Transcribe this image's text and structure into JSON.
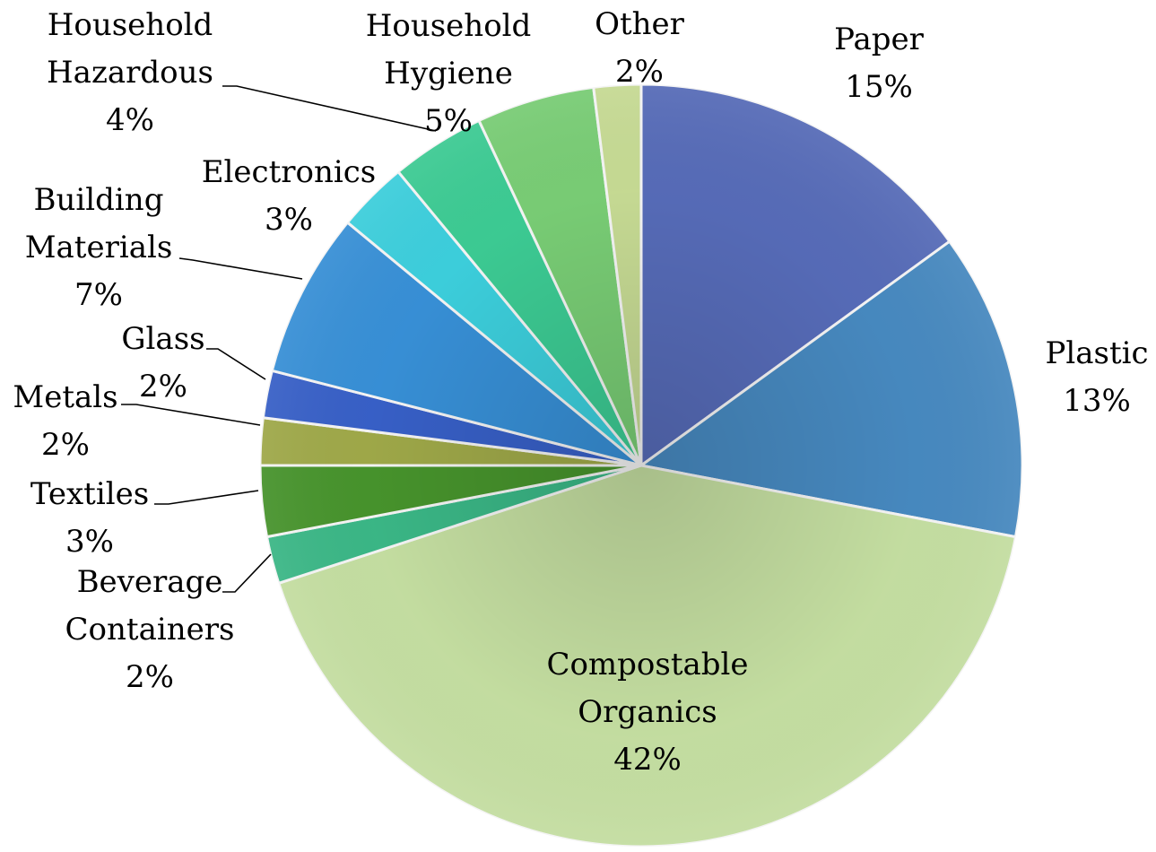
{
  "chart_data": {
    "type": "pie",
    "title": "",
    "slices": [
      {
        "label": [
          "Paper"
        ],
        "pct_label": "15%",
        "value": 15,
        "color": "#5a70c0"
      },
      {
        "label": [
          "Plastic"
        ],
        "pct_label": "13%",
        "value": 13,
        "color": "#4a8fc8"
      },
      {
        "label": [
          "Compostable",
          "Organics"
        ],
        "pct_label": "42%",
        "value": 42,
        "color": "#cde8a8"
      },
      {
        "label": [
          "Beverage",
          "Containers"
        ],
        "pct_label": "2%",
        "value": 2,
        "color": "#3dbf8c"
      },
      {
        "label": [
          "Textiles"
        ],
        "pct_label": "3%",
        "value": 3,
        "color": "#4a9a2e"
      },
      {
        "label": [
          "Metals"
        ],
        "pct_label": "2%",
        "value": 2,
        "color": "#a6b04c"
      },
      {
        "label": [
          "Glass"
        ],
        "pct_label": "2%",
        "value": 2,
        "color": "#3a64d0"
      },
      {
        "label": [
          "Building",
          "Materials"
        ],
        "pct_label": "7%",
        "value": 7,
        "color": "#3a96e0"
      },
      {
        "label": [
          "Electronics"
        ],
        "pct_label": "3%",
        "value": 3,
        "color": "#3fd8e6"
      },
      {
        "label": [
          "Household",
          "Hazardous"
        ],
        "pct_label": "4%",
        "value": 4,
        "color": "#3fd49a"
      },
      {
        "label": [
          "Household",
          "Hygiene"
        ],
        "pct_label": "5%",
        "value": 5,
        "color": "#7ed67a"
      },
      {
        "label": [
          "Other"
        ],
        "pct_label": "2%",
        "value": 2,
        "color": "#cfe49a"
      }
    ]
  }
}
